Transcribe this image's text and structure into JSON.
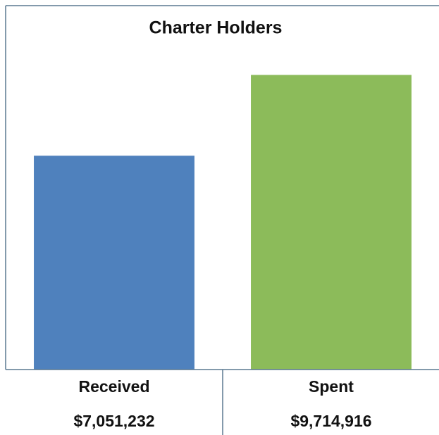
{
  "chart_data": {
    "type": "bar",
    "title": "Charter Holders",
    "categories": [
      "Received",
      "Spent"
    ],
    "values": [
      7051232,
      9714916
    ],
    "value_labels": [
      "$7,051,232",
      "$9,714,916"
    ],
    "colors": [
      "#4f81bd",
      "#8cbb5a"
    ],
    "ylim": [
      0,
      12000000
    ]
  }
}
